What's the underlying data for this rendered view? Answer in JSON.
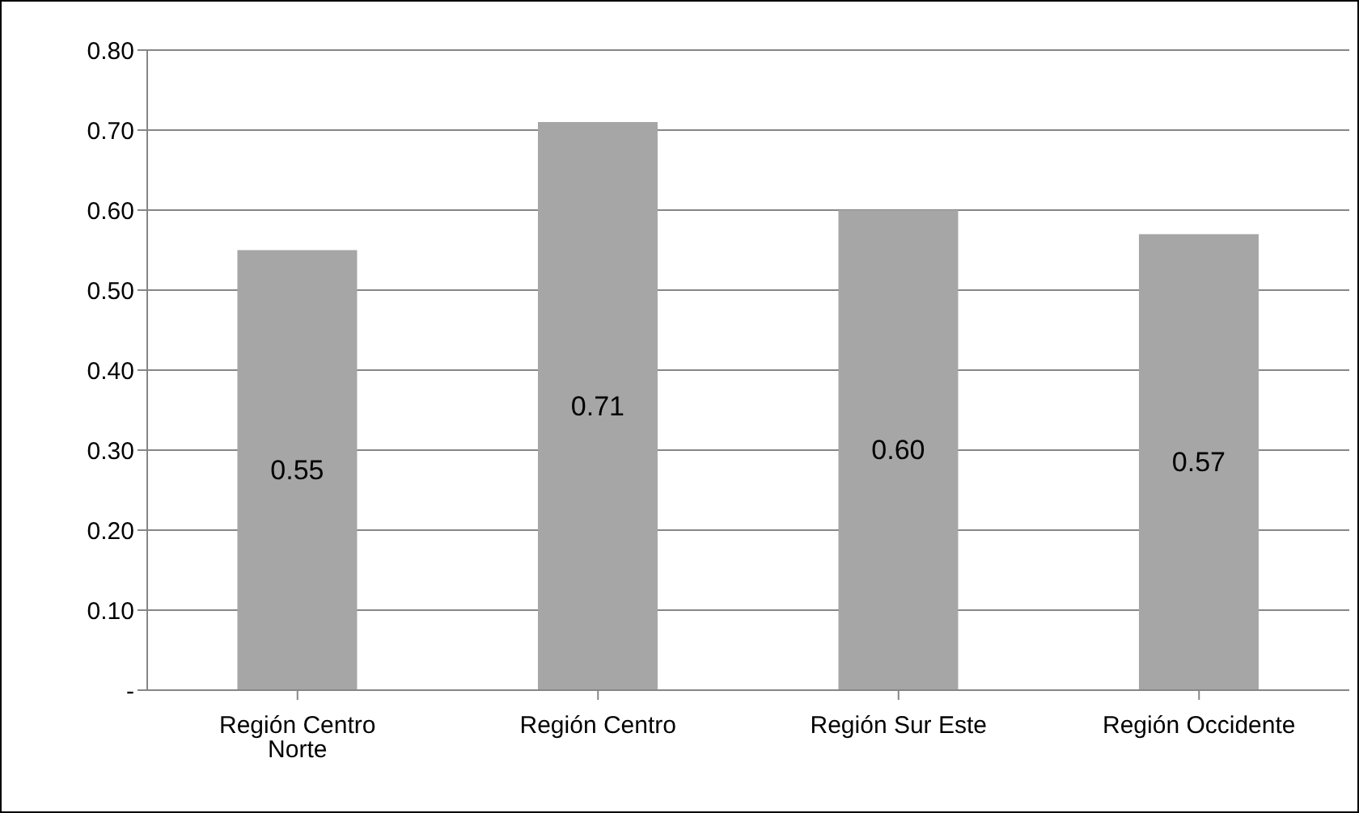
{
  "chart_data": {
    "type": "bar",
    "categories": [
      "Región Centro Norte",
      "Región Centro",
      "Región Sur Este",
      "Región Occidente"
    ],
    "values": [
      0.55,
      0.71,
      0.6,
      0.57
    ],
    "color": "#a6a6a6",
    "value_labels": [
      "0.55",
      "0.71",
      "0.60",
      "0.57"
    ],
    "ylim": [
      0,
      0.8
    ],
    "yticks": [
      {
        "value": 0,
        "label": "-"
      },
      {
        "value": 0.1,
        "label": "0.10"
      },
      {
        "value": 0.2,
        "label": "0.20"
      },
      {
        "value": 0.3,
        "label": "0.30"
      },
      {
        "value": 0.4,
        "label": "0.40"
      },
      {
        "value": 0.5,
        "label": "0.50"
      },
      {
        "value": 0.6,
        "label": "0.60"
      },
      {
        "value": 0.7,
        "label": "0.70"
      },
      {
        "value": 0.8,
        "label": "0.80"
      }
    ],
    "grid": "y",
    "legend": false
  }
}
